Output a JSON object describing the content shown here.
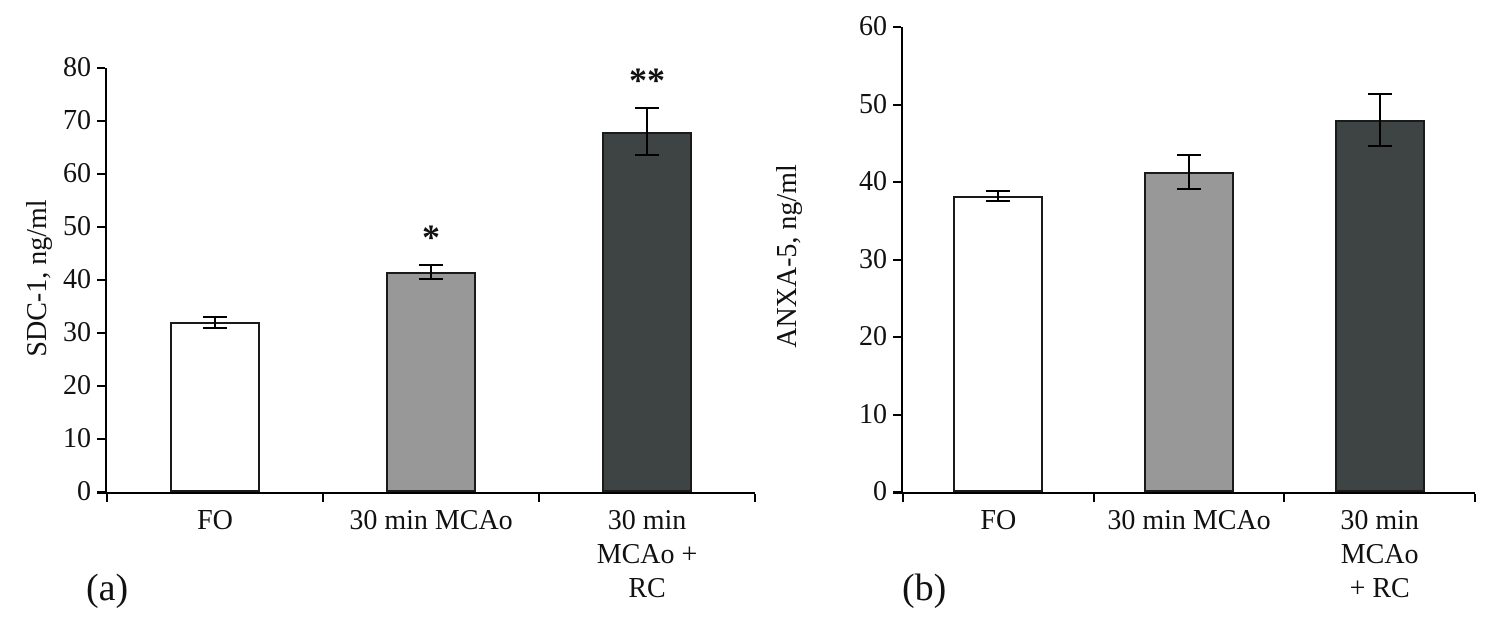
{
  "chart_data": [
    {
      "type": "bar",
      "panel_label": "(a)",
      "ylabel": "SDC-1, ng/ml",
      "xlabel": "",
      "ylim": [
        0,
        80
      ],
      "yticks": [
        0,
        10,
        20,
        30,
        40,
        50,
        60,
        70,
        80
      ],
      "categories": [
        "FO",
        "30 min MCAo",
        "30 min\nMCAo + RC"
      ],
      "values": [
        32,
        41.5,
        68
      ],
      "errors": [
        1.2,
        1.5,
        4.6
      ],
      "annotations": [
        "",
        "*",
        "**"
      ],
      "bar_colors": [
        "#ffffff",
        "#989898",
        "#3e4344"
      ],
      "grid": false,
      "legend": "none"
    },
    {
      "type": "bar",
      "panel_label": "(b)",
      "ylabel": "ANXA-5, ng/ml",
      "xlabel": "",
      "ylim": [
        0,
        60
      ],
      "yticks": [
        0,
        10,
        20,
        30,
        40,
        50,
        60
      ],
      "categories": [
        "FO",
        "30 min MCAo",
        "30 min\nMCAo + RC"
      ],
      "values": [
        38.2,
        41.3,
        48
      ],
      "errors": [
        0.8,
        2.3,
        3.5
      ],
      "annotations": [
        "",
        "",
        ""
      ],
      "bar_colors": [
        "#ffffff",
        "#989898",
        "#3e4344"
      ],
      "grid": false,
      "legend": "none"
    }
  ]
}
